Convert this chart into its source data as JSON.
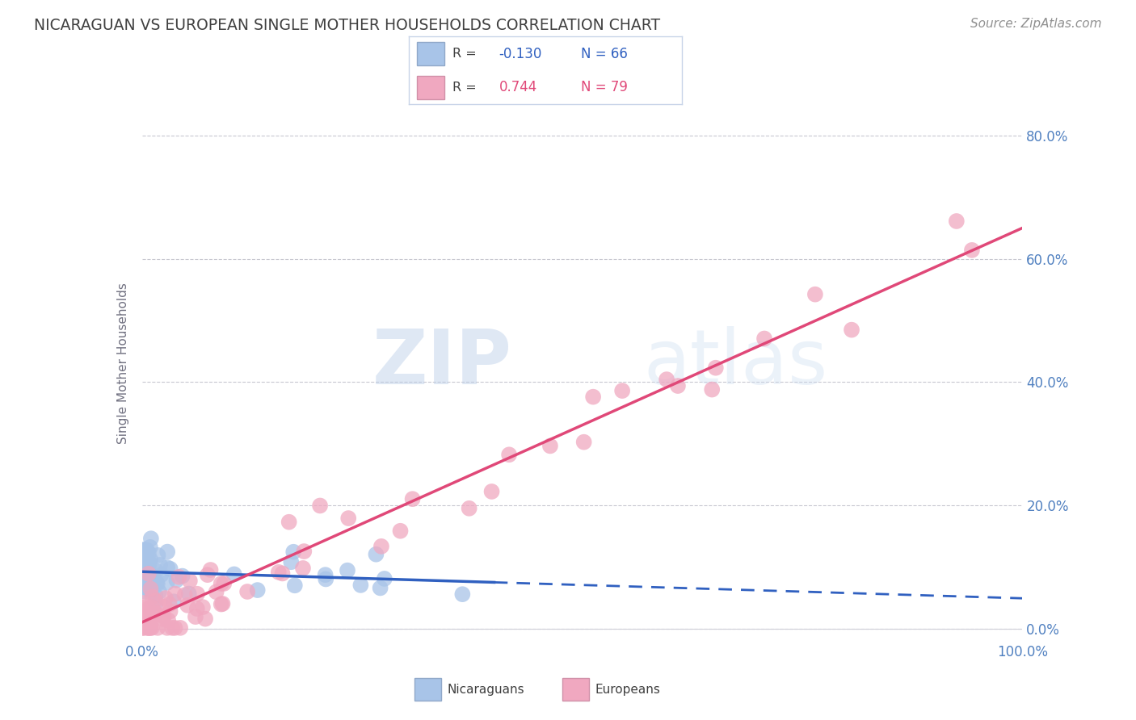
{
  "title": "NICARAGUAN VS EUROPEAN SINGLE MOTHER HOUSEHOLDS CORRELATION CHART",
  "source": "Source: ZipAtlas.com",
  "ylabel": "Single Mother Households",
  "r_nicaraguan": -0.13,
  "n_nicaraguan": 66,
  "r_european": 0.744,
  "n_european": 79,
  "blue_color": "#a8c4e8",
  "pink_color": "#f0a8c0",
  "blue_line_color": "#3060c0",
  "pink_line_color": "#e04878",
  "watermark": "ZIPatlas",
  "background_color": "#ffffff",
  "grid_color": "#c8c8d0",
  "title_color": "#404040",
  "axis_label_color": "#5080c0",
  "source_color": "#909090",
  "ylim_max": 0.88,
  "xlim_max": 1.0
}
